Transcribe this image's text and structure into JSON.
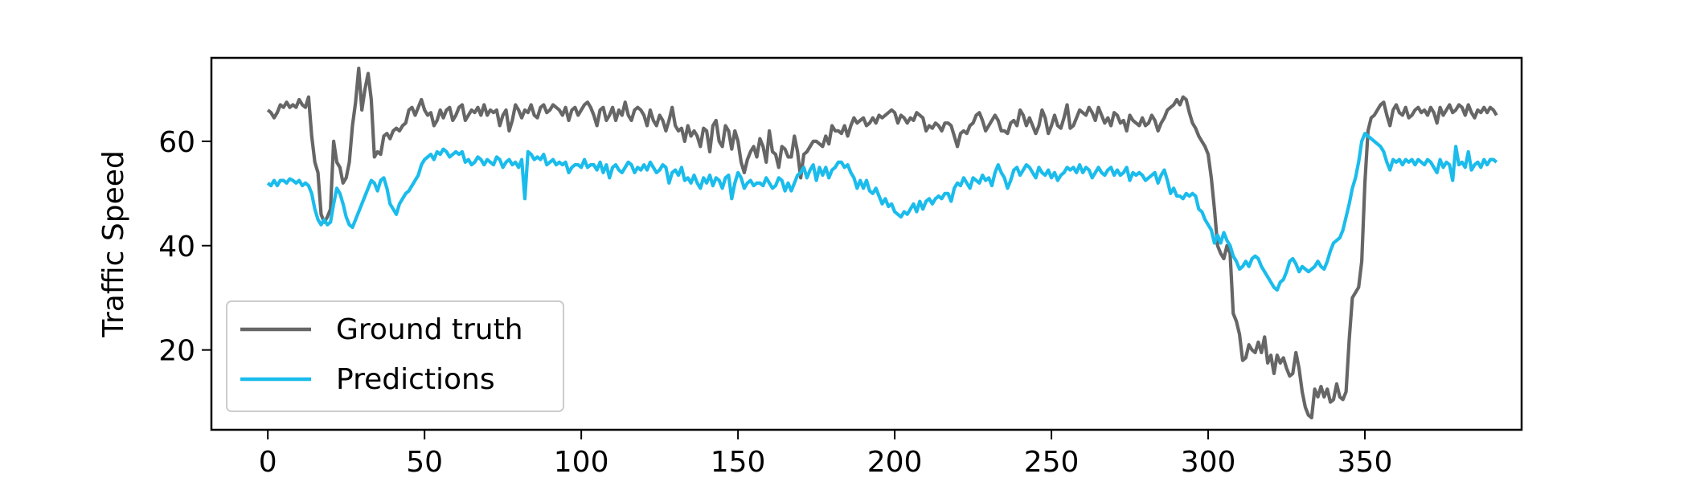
{
  "chart_data": {
    "type": "line",
    "title": "",
    "xlabel": "",
    "ylabel": "Traffic Speed",
    "xlim": [
      -18,
      400
    ],
    "ylim": [
      4.7,
      76.0
    ],
    "xticks": [
      0,
      50,
      100,
      150,
      200,
      250,
      300,
      350
    ],
    "yticks": [
      20,
      40,
      60
    ],
    "grid": false,
    "legend_position": "lower left",
    "series": [
      {
        "name": "Ground truth",
        "color": "#666666",
        "values": [
          66.0,
          65.5,
          64.5,
          65.5,
          67.0,
          66.5,
          67.5,
          66.5,
          67.0,
          66.5,
          68.0,
          67.0,
          66.5,
          68.5,
          61.0,
          56.0,
          54.0,
          46.0,
          44.5,
          45.5,
          47.0,
          60.0,
          56.0,
          55.0,
          52.0,
          53.0,
          56.0,
          63.0,
          67.5,
          74.0,
          66.0,
          70.0,
          73.0,
          68.0,
          57.0,
          58.0,
          57.5,
          61.0,
          61.5,
          60.5,
          62.0,
          62.5,
          62.0,
          63.0,
          63.5,
          66.0,
          66.5,
          65.0,
          66.5,
          68.0,
          66.0,
          65.0,
          65.5,
          63.0,
          64.0,
          66.0,
          64.5,
          66.0,
          66.5,
          64.0,
          65.0,
          66.5,
          67.0,
          64.0,
          65.0,
          66.0,
          65.5,
          66.5,
          65.0,
          67.0,
          65.0,
          66.0,
          65.5,
          66.0,
          63.0,
          65.0,
          66.0,
          62.0,
          64.0,
          67.0,
          66.0,
          64.5,
          66.0,
          65.5,
          67.0,
          65.0,
          64.5,
          66.5,
          67.0,
          65.5,
          66.0,
          67.0,
          66.5,
          66.0,
          65.0,
          66.5,
          64.0,
          66.0,
          66.5,
          65.0,
          66.0,
          67.0,
          67.5,
          66.5,
          65.0,
          63.0,
          66.0,
          66.5,
          64.0,
          65.0,
          66.5,
          64.0,
          66.0,
          65.0,
          67.5,
          65.0,
          64.0,
          66.0,
          66.5,
          66.0,
          65.0,
          63.0,
          66.0,
          64.0,
          63.0,
          65.0,
          64.0,
          62.0,
          64.0,
          66.5,
          63.0,
          62.0,
          62.5,
          60.0,
          63.0,
          61.0,
          62.0,
          61.0,
          59.0,
          62.5,
          62.0,
          58.0,
          63.0,
          64.0,
          60.0,
          59.0,
          63.0,
          62.0,
          58.5,
          62.0,
          60.0,
          56.0,
          54.0,
          56.5,
          58.0,
          59.0,
          57.0,
          60.5,
          59.0,
          56.0,
          62.0,
          58.0,
          57.5,
          55.0,
          59.0,
          58.5,
          57.0,
          57.0,
          61.0,
          58.0,
          53.0,
          57.5,
          58.0,
          59.0,
          60.0,
          60.0,
          59.5,
          59.0,
          61.0,
          59.5,
          63.0,
          62.0,
          62.0,
          61.5,
          63.0,
          61.0,
          63.0,
          64.5,
          63.5,
          64.0,
          64.5,
          63.0,
          63.5,
          64.5,
          63.5,
          65.0,
          64.5,
          65.0,
          65.5,
          66.0,
          65.5,
          63.5,
          65.0,
          64.5,
          63.5,
          64.5,
          64.0,
          65.5,
          65.0,
          64.5,
          62.0,
          63.0,
          62.5,
          63.5,
          63.0,
          62.0,
          63.5,
          63.5,
          63.0,
          61.0,
          59.0,
          61.5,
          62.0,
          61.5,
          63.0,
          63.5,
          65.0,
          65.5,
          64.0,
          62.0,
          63.0,
          64.0,
          65.0,
          64.0,
          62.0,
          62.0,
          61.5,
          63.5,
          64.0,
          63.0,
          66.0,
          65.0,
          63.0,
          64.5,
          63.0,
          61.5,
          63.0,
          66.0,
          64.5,
          61.5,
          63.0,
          65.0,
          63.0,
          62.5,
          64.5,
          67.0,
          62.5,
          63.0,
          64.5,
          66.0,
          65.5,
          65.0,
          66.5,
          65.5,
          64.0,
          66.5,
          65.0,
          63.5,
          64.5,
          63.0,
          65.5,
          65.0,
          63.5,
          64.0,
          62.0,
          65.0,
          64.0,
          63.5,
          63.0,
          64.5,
          63.0,
          63.5,
          65.0,
          64.0,
          62.0,
          63.5,
          64.5,
          66.0,
          66.5,
          67.0,
          68.0,
          67.0,
          68.5,
          68.0,
          65.5,
          63.5,
          62.5,
          61.0,
          60.0,
          59.0,
          57.5,
          53.0,
          47.0,
          40.0,
          38.5,
          37.5,
          40.0,
          38.5,
          27.0,
          25.5,
          23.0,
          18.0,
          18.5,
          21.0,
          20.0,
          19.5,
          21.5,
          19.5,
          22.5,
          17.5,
          19.0,
          15.5,
          19.0,
          17.5,
          18.5,
          16.5,
          15.0,
          15.5,
          19.5,
          16.5,
          12.0,
          9.0,
          7.5,
          7.0,
          12.5,
          11.0,
          13.0,
          11.0,
          12.5,
          10.0,
          10.5,
          13.5,
          11.0,
          10.5,
          12.0,
          22.0,
          30.0,
          31.0,
          32.0,
          37.0,
          52.0,
          62.0,
          64.5,
          65.0,
          66.0,
          67.0,
          67.5,
          65.0,
          63.0,
          66.0,
          67.0,
          65.5,
          65.0,
          66.5,
          64.5,
          65.0,
          66.0,
          66.5,
          65.5,
          66.0,
          65.0,
          66.5,
          65.5,
          63.5,
          66.5,
          65.0,
          66.0,
          67.0,
          65.5,
          66.0,
          67.0,
          66.5,
          65.0,
          67.0,
          65.5,
          64.5,
          66.0,
          65.5,
          66.5,
          65.5,
          66.5,
          66.0,
          65.0
        ]
      },
      {
        "name": "Predictions",
        "color": "#1abcec",
        "values": [
          52.0,
          51.5,
          52.5,
          51.5,
          52.5,
          52.5,
          52.0,
          52.8,
          52.5,
          52.0,
          52.5,
          51.5,
          52.0,
          51.5,
          50.0,
          47.0,
          45.0,
          44.0,
          45.0,
          44.0,
          44.5,
          48.0,
          51.0,
          50.0,
          48.0,
          45.5,
          44.0,
          43.5,
          45.0,
          46.5,
          48.0,
          49.5,
          51.0,
          52.5,
          52.0,
          50.5,
          52.5,
          53.0,
          51.0,
          48.0,
          47.0,
          46.0,
          48.0,
          49.0,
          50.0,
          50.5,
          51.5,
          52.5,
          53.5,
          55.5,
          56.5,
          57.0,
          57.5,
          56.5,
          58.0,
          57.5,
          58.5,
          58.0,
          57.0,
          57.5,
          58.0,
          57.5,
          58.0,
          56.0,
          56.5,
          55.5,
          56.0,
          57.0,
          56.5,
          55.5,
          56.5,
          56.0,
          55.5,
          57.0,
          56.5,
          55.0,
          56.0,
          56.5,
          55.5,
          56.0,
          55.0,
          56.5,
          49.0,
          58.0,
          57.5,
          56.5,
          57.0,
          56.5,
          57.5,
          55.5,
          56.0,
          56.5,
          55.5,
          56.0,
          55.5,
          56.0,
          54.0,
          55.0,
          55.5,
          55.5,
          55.0,
          56.5,
          55.0,
          55.5,
          55.5,
          54.5,
          56.0,
          54.0,
          55.5,
          53.0,
          55.0,
          55.5,
          54.5,
          54.0,
          55.0,
          56.0,
          55.5,
          54.0,
          55.0,
          54.5,
          55.5,
          54.5,
          56.0,
          55.0,
          54.0,
          54.5,
          55.5,
          55.0,
          52.0,
          54.0,
          54.5,
          53.5,
          55.0,
          52.5,
          53.0,
          52.0,
          53.5,
          52.0,
          51.0,
          53.0,
          52.0,
          53.5,
          51.5,
          53.0,
          52.5,
          51.0,
          53.0,
          53.5,
          49.0,
          52.0,
          54.0,
          53.0,
          51.0,
          52.0,
          52.5,
          51.5,
          52.0,
          52.0,
          51.5,
          53.0,
          52.0,
          51.0,
          51.5,
          53.0,
          52.5,
          50.5,
          52.0,
          50.5,
          52.0,
          53.5,
          54.0,
          55.0,
          53.0,
          54.5,
          55.5,
          52.5,
          55.0,
          53.5,
          55.0,
          53.0,
          54.5,
          55.0,
          56.0,
          56.0,
          55.0,
          55.5,
          54.0,
          53.0,
          51.0,
          52.5,
          51.0,
          52.5,
          50.5,
          50.0,
          51.0,
          49.5,
          48.0,
          49.0,
          47.5,
          48.0,
          46.5,
          46.0,
          45.5,
          46.5,
          46.0,
          47.0,
          48.0,
          46.5,
          48.5,
          47.0,
          48.5,
          49.0,
          48.0,
          49.0,
          49.5,
          49.0,
          50.0,
          50.0,
          48.5,
          51.0,
          52.0,
          51.5,
          53.0,
          52.0,
          51.0,
          53.0,
          52.5,
          52.0,
          53.5,
          52.5,
          53.0,
          51.5,
          54.0,
          55.5,
          54.0,
          53.0,
          51.0,
          52.5,
          54.5,
          55.0,
          53.5,
          54.5,
          55.5,
          55.0,
          54.0,
          53.0,
          55.0,
          54.0,
          53.5,
          54.5,
          53.0,
          54.0,
          52.5,
          53.5,
          54.0,
          55.0,
          54.5,
          55.0,
          54.0,
          55.5,
          54.0,
          55.0,
          54.5,
          53.0,
          54.0,
          55.0,
          54.0,
          53.5,
          54.5,
          55.0,
          53.5,
          54.5,
          53.5,
          54.0,
          55.0,
          52.5,
          54.0,
          53.5,
          54.0,
          53.5,
          52.5,
          53.0,
          53.5,
          54.0,
          52.0,
          53.5,
          54.5,
          52.5,
          50.0,
          51.0,
          49.5,
          49.5,
          49.0,
          50.0,
          49.5,
          50.0,
          49.5,
          47.0,
          46.5,
          45.0,
          44.0,
          43.0,
          40.5,
          42.0,
          40.5,
          42.5,
          41.0,
          40.0,
          38.0,
          37.0,
          35.5,
          36.0,
          37.0,
          36.0,
          37.5,
          38.0,
          37.5,
          36.0,
          35.0,
          34.0,
          33.0,
          32.0,
          31.5,
          33.0,
          33.5,
          35.0,
          37.0,
          37.5,
          36.5,
          35.0,
          36.0,
          35.5,
          35.0,
          35.5,
          36.0,
          37.0,
          36.0,
          35.5,
          37.0,
          39.0,
          40.5,
          41.0,
          41.5,
          43.0,
          45.5,
          48.0,
          51.0,
          53.0,
          56.0,
          60.0,
          61.5,
          61.0,
          60.5,
          60.0,
          59.5,
          59.0,
          58.0,
          56.0,
          54.5,
          56.5,
          56.0,
          56.5,
          55.5,
          56.5,
          56.0,
          56.5,
          55.5,
          56.5,
          56.0,
          55.5,
          56.5,
          56.0,
          55.0,
          54.0,
          56.5,
          55.0,
          56.0,
          55.5,
          52.5,
          59.0,
          55.5,
          56.0,
          55.0,
          58.0,
          54.5,
          55.5,
          56.0,
          55.0,
          56.5,
          55.5,
          56.5,
          56.5,
          56.0
        ]
      }
    ]
  }
}
